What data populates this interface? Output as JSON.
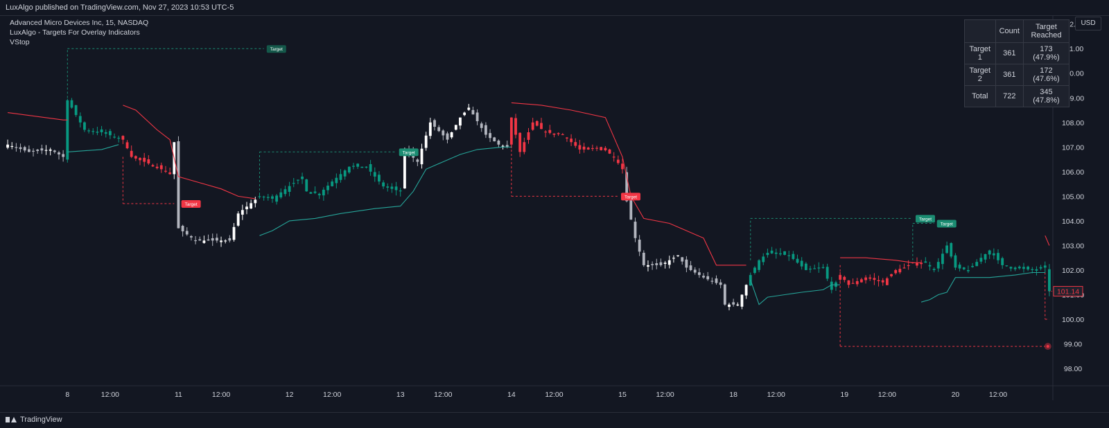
{
  "header": {
    "published": "LuxAlgo published on TradingView.com, Nov 27, 2023 10:53 UTC-5"
  },
  "legend": {
    "symbol": "Advanced Micro Devices Inc, 15, NASDAQ",
    "indicator": "LuxAlgo - Targets For Overlay Indicators",
    "overlay": "VStop"
  },
  "currency_button": "USD",
  "stats_table": {
    "headers": [
      "",
      "Count",
      "Target Reached"
    ],
    "rows": [
      {
        "label": "Target 1",
        "count": "361",
        "reached": "173 (47.9%)"
      },
      {
        "label": "Target 2",
        "count": "361",
        "reached": "172 (47.6%)"
      },
      {
        "label": "Total",
        "count": "722",
        "reached": "345 (47.8%)"
      }
    ]
  },
  "footer": {
    "brand": "TradingView"
  },
  "colors": {
    "background": "#131722",
    "bull": "#089981",
    "bear": "#f23645",
    "neutral_up": "#ffffff",
    "neutral_down": "#b2b5be",
    "stop_up": "#26a69a",
    "stop_down": "#f23645",
    "target_bull": "#1b8c72",
    "target_bear": "#f23645",
    "grid": "#1e222d",
    "axis_text": "#d1d4dc"
  },
  "chart_data": {
    "type": "candlestick",
    "title": "Advanced Micro Devices Inc, 15, NASDAQ",
    "ylim": [
      97.3,
      112.3
    ],
    "y_ticks": [
      98.0,
      99.0,
      100.0,
      101.0,
      102.0,
      103.0,
      104.0,
      105.0,
      106.0,
      107.0,
      108.0,
      109.0,
      110.0,
      111.0,
      112.0
    ],
    "x_ticks": [
      {
        "label": "8",
        "bar": 14
      },
      {
        "label": "12:00",
        "bar": 24
      },
      {
        "label": "11",
        "bar": 40
      },
      {
        "label": "12:00",
        "bar": 50
      },
      {
        "label": "12",
        "bar": 66
      },
      {
        "label": "12:00",
        "bar": 76
      },
      {
        "label": "13",
        "bar": 92
      },
      {
        "label": "12:00",
        "bar": 102
      },
      {
        "label": "14",
        "bar": 118
      },
      {
        "label": "12:00",
        "bar": 128
      },
      {
        "label": "15",
        "bar": 144
      },
      {
        "label": "12:00",
        "bar": 154
      },
      {
        "label": "18",
        "bar": 170
      },
      {
        "label": "12:00",
        "bar": 180
      },
      {
        "label": "19",
        "bar": 196
      },
      {
        "label": "12:00",
        "bar": 206
      },
      {
        "label": "20",
        "bar": 222
      },
      {
        "label": "12:00",
        "bar": 232
      }
    ],
    "bar_count": 245,
    "last_price": "101.14",
    "target_label": "Target",
    "anchors": [
      [
        0,
        107.1
      ],
      [
        5,
        106.8
      ],
      [
        10,
        106.9
      ],
      [
        13,
        106.6
      ],
      [
        14,
        108.9
      ],
      [
        18,
        107.7
      ],
      [
        22,
        107.6
      ],
      [
        27,
        107.3
      ],
      [
        29,
        106.6
      ],
      [
        35,
        106.2
      ],
      [
        38,
        105.9
      ],
      [
        39,
        107.2
      ],
      [
        40,
        103.7
      ],
      [
        44,
        103.2
      ],
      [
        52,
        103.2
      ],
      [
        54,
        104.3
      ],
      [
        59,
        105.0
      ],
      [
        62,
        104.9
      ],
      [
        69,
        105.8
      ],
      [
        70,
        105.2
      ],
      [
        73,
        105.1
      ],
      [
        76,
        105.6
      ],
      [
        80,
        106.2
      ],
      [
        84,
        106.2
      ],
      [
        88,
        105.4
      ],
      [
        92,
        105.2
      ],
      [
        93,
        106.9
      ],
      [
        96,
        106.4
      ],
      [
        99,
        108.0
      ],
      [
        103,
        107.3
      ],
      [
        106,
        108.2
      ],
      [
        108,
        108.6
      ],
      [
        112,
        107.5
      ],
      [
        115,
        107.1
      ],
      [
        117,
        107.0
      ],
      [
        118,
        108.2
      ],
      [
        120,
        106.8
      ],
      [
        123,
        108.0
      ],
      [
        126,
        107.6
      ],
      [
        130,
        107.5
      ],
      [
        134,
        106.9
      ],
      [
        136,
        106.9
      ],
      [
        139,
        107.0
      ],
      [
        142,
        106.6
      ],
      [
        144,
        106.1
      ],
      [
        145,
        104.8
      ],
      [
        147,
        103.3
      ],
      [
        149,
        102.2
      ],
      [
        153,
        102.2
      ],
      [
        157,
        102.6
      ],
      [
        159,
        102.1
      ],
      [
        163,
        101.7
      ],
      [
        167,
        101.4
      ],
      [
        168,
        100.6
      ],
      [
        171,
        100.6
      ],
      [
        174,
        101.8
      ],
      [
        176,
        102.4
      ],
      [
        178,
        102.7
      ],
      [
        183,
        102.6
      ],
      [
        187,
        102.0
      ],
      [
        191,
        102.1
      ],
      [
        193,
        101.2
      ],
      [
        195,
        101.8
      ],
      [
        197,
        101.4
      ],
      [
        201,
        101.7
      ],
      [
        205,
        101.5
      ],
      [
        208,
        102.0
      ],
      [
        210,
        102.1
      ],
      [
        212,
        102.3
      ],
      [
        215,
        102.3
      ],
      [
        217,
        102.0
      ],
      [
        220,
        103.0
      ],
      [
        222,
        102.1
      ],
      [
        225,
        102.0
      ],
      [
        228,
        102.5
      ],
      [
        230,
        102.8
      ],
      [
        233,
        102.2
      ],
      [
        236,
        102.1
      ],
      [
        240,
        102.0
      ],
      [
        243,
        102.1
      ],
      [
        244,
        101.14
      ]
    ],
    "regime_bars": [
      {
        "from": 0,
        "to": 13,
        "style": "neutral"
      },
      {
        "from": 14,
        "to": 26,
        "style": "bull"
      },
      {
        "from": 27,
        "to": 38,
        "style": "bear"
      },
      {
        "from": 39,
        "to": 58,
        "style": "neutral"
      },
      {
        "from": 59,
        "to": 92,
        "style": "bull"
      },
      {
        "from": 93,
        "to": 117,
        "style": "neutral"
      },
      {
        "from": 118,
        "to": 144,
        "style": "bear"
      },
      {
        "from": 145,
        "to": 173,
        "style": "neutral"
      },
      {
        "from": 174,
        "to": 194,
        "style": "bull"
      },
      {
        "from": 195,
        "to": 214,
        "style": "bear"
      },
      {
        "from": 215,
        "to": 244,
        "style": "bull"
      }
    ],
    "vstop_series": [
      {
        "direction": "down",
        "points": [
          [
            0,
            108.4
          ],
          [
            13,
            108.1
          ],
          [
            14,
            108.1
          ]
        ]
      },
      {
        "direction": "up",
        "points": [
          [
            14,
            106.8
          ],
          [
            22,
            106.9
          ],
          [
            26,
            107.1
          ]
        ]
      },
      {
        "direction": "down",
        "points": [
          [
            27,
            108.7
          ],
          [
            30,
            108.5
          ],
          [
            35,
            107.7
          ],
          [
            38,
            107.3
          ],
          [
            40,
            105.8
          ],
          [
            44,
            105.6
          ],
          [
            50,
            105.3
          ],
          [
            54,
            105.0
          ],
          [
            58,
            104.9
          ]
        ]
      },
      {
        "direction": "up",
        "points": [
          [
            59,
            103.4
          ],
          [
            62,
            103.6
          ],
          [
            66,
            104.0
          ],
          [
            72,
            104.1
          ],
          [
            78,
            104.3
          ],
          [
            86,
            104.5
          ],
          [
            92,
            104.6
          ],
          [
            95,
            105.2
          ],
          [
            98,
            106.1
          ],
          [
            102,
            106.4
          ],
          [
            106,
            106.7
          ],
          [
            110,
            106.9
          ],
          [
            116,
            107.0
          ],
          [
            118,
            107.0
          ]
        ]
      },
      {
        "direction": "down",
        "points": [
          [
            118,
            108.8
          ],
          [
            125,
            108.7
          ],
          [
            132,
            108.5
          ],
          [
            140,
            108.2
          ],
          [
            144,
            106.6
          ],
          [
            146,
            105.0
          ],
          [
            149,
            104.1
          ],
          [
            155,
            103.9
          ],
          [
            159,
            103.6
          ],
          [
            163,
            103.3
          ],
          [
            166,
            102.2
          ],
          [
            173,
            102.2
          ]
        ]
      },
      {
        "direction": "up",
        "points": [
          [
            174,
            101.6
          ],
          [
            176,
            100.6
          ],
          [
            178,
            100.9
          ],
          [
            182,
            101.0
          ],
          [
            186,
            101.1
          ],
          [
            191,
            101.2
          ],
          [
            193,
            101.4
          ],
          [
            195,
            101.4
          ]
        ]
      },
      {
        "direction": "down",
        "points": [
          [
            195,
            102.5
          ],
          [
            201,
            102.5
          ],
          [
            208,
            102.4
          ],
          [
            212,
            102.3
          ],
          [
            214,
            102.3
          ]
        ]
      },
      {
        "direction": "up",
        "points": [
          [
            214,
            100.7
          ],
          [
            216,
            100.8
          ],
          [
            218,
            101.0
          ],
          [
            220,
            101.1
          ],
          [
            222,
            101.7
          ],
          [
            230,
            101.7
          ],
          [
            236,
            101.8
          ],
          [
            240,
            101.9
          ],
          [
            243,
            101.9
          ]
        ]
      },
      {
        "direction": "down",
        "points": [
          [
            243,
            103.4
          ],
          [
            244,
            103.0
          ]
        ]
      }
    ],
    "targets": [
      {
        "kind": "bull",
        "x0": 14,
        "x1": 60,
        "entry": 106.8,
        "level": 111.0,
        "label_bar": 61
      },
      {
        "kind": "bear",
        "x0": 27,
        "x1": 39,
        "entry": 106.6,
        "level": 104.7,
        "label_bar": 41
      },
      {
        "kind": "bull",
        "x0": 59,
        "x1": 91,
        "entry": 104.9,
        "level": 106.8,
        "label_bar": 92
      },
      {
        "kind": "bear",
        "x0": 118,
        "x1": 143,
        "entry": 107.4,
        "level": 105.0,
        "label_bar": 144
      },
      {
        "kind": "bull",
        "x0": 174,
        "x1": 212,
        "entry": 102.4,
        "level": 104.1,
        "label_bar": 213
      },
      {
        "kind": "bull",
        "x0": 212,
        "x1": 217,
        "entry": 102.4,
        "level": 103.9,
        "label_bar": 218
      },
      {
        "kind": "bear",
        "x0": 195,
        "x1": 243,
        "entry": 102.2,
        "level": 98.9,
        "label_bar": null
      },
      {
        "kind": "bear-stub",
        "x0": 243,
        "x1": 244,
        "entry": 101.9,
        "level": 100.0,
        "label_bar": null
      }
    ]
  }
}
